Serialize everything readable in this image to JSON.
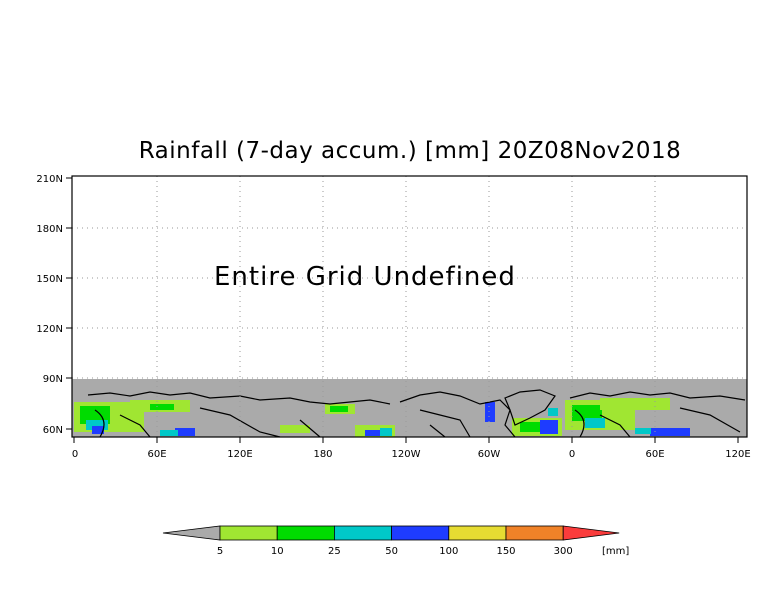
{
  "title": "Rainfall (7-day accum.) [mm] 20Z08Nov2018",
  "message": "Entire Grid Undefined",
  "lat_ticks": [
    "210N",
    "180N",
    "150N",
    "120N",
    "90N",
    "60N"
  ],
  "lon_ticks": [
    "0",
    "60E",
    "120E",
    "180",
    "120W",
    "60W",
    "0",
    "60E",
    "120E"
  ],
  "legend": {
    "unit": "[mm]",
    "bins": [
      {
        "label": "5",
        "color": "#a0e632"
      },
      {
        "label": "10",
        "color": "#00dc00"
      },
      {
        "label": "25",
        "color": "#00c8c8"
      },
      {
        "label": "50",
        "color": "#1e3cff"
      },
      {
        "label": "100",
        "color": "#e6dc32"
      },
      {
        "label": "150",
        "color": "#f08228"
      },
      {
        "label": "300",
        "color": "#fa3c3c"
      }
    ],
    "under_color": "#aaaaaa"
  },
  "colors": {
    "land_mask": "#aaaaaa",
    "coast": "#000000",
    "grid": "#999999"
  }
}
